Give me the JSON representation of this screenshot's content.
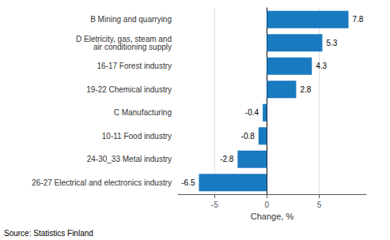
{
  "chart_data": {
    "type": "bar",
    "orientation": "horizontal",
    "categories": [
      "26-27 Electrical and electronics industry",
      "24-30_33 Metal industry",
      "10-11 Food industry",
      "C Manufacturing",
      "19-22 Chemical industry",
      "16-17 Forest industry",
      "D Eletricity, gas, steam and\nair conditioning supply",
      "B Mining and quarrying"
    ],
    "values": [
      -6.5,
      -2.8,
      -0.8,
      -0.4,
      2.8,
      4.3,
      5.3,
      7.8
    ],
    "color": "#1a7abf",
    "xlabel": "Change, %",
    "xlim": [
      -8.5,
      9.5
    ],
    "xticks": [
      -5,
      0,
      5
    ],
    "grid": true,
    "data_labels": true,
    "annotation": "Source: Statistics Finland"
  }
}
